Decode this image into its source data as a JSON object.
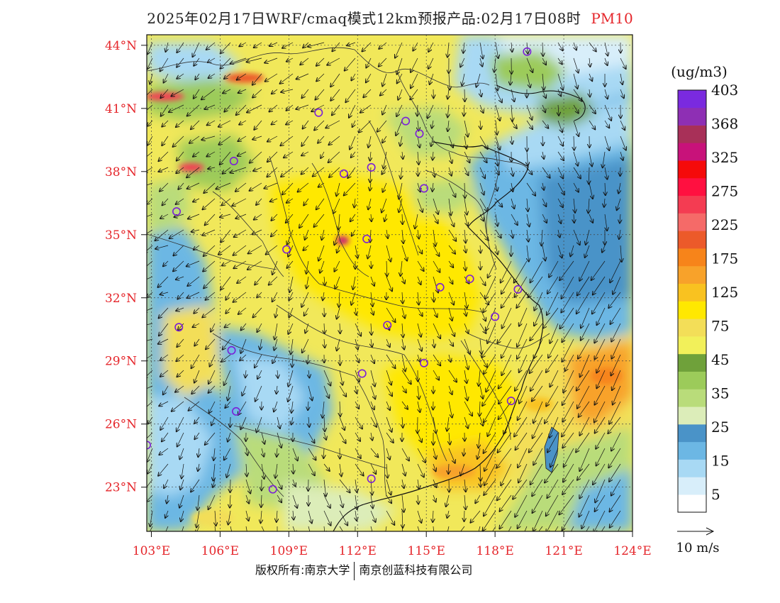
{
  "title": {
    "main": "2025年02月17日WRF/cmaq模式12km预报产品:02月17日08时",
    "variable": "PM10"
  },
  "axes": {
    "lat_labels": [
      "44°N",
      "41°N",
      "38°N",
      "35°N",
      "32°N",
      "29°N",
      "26°N",
      "23°N"
    ],
    "lat_values": [
      44,
      41,
      38,
      35,
      32,
      29,
      26,
      23
    ],
    "lon_labels": [
      "103°E",
      "106°E",
      "109°E",
      "112°E",
      "115°E",
      "118°E",
      "121°E",
      "124°E"
    ],
    "lon_values": [
      103,
      106,
      109,
      112,
      115,
      118,
      121,
      124
    ],
    "lat_range": [
      20.9,
      44.5
    ],
    "lon_range": [
      102.8,
      124
    ]
  },
  "legend": {
    "unit": "(ug/m3)",
    "labels": [
      "5",
      "15",
      "25",
      "35",
      "45",
      "75",
      "125",
      "175",
      "225",
      "275",
      "325",
      "368",
      "403"
    ],
    "colors": [
      "#ffffff",
      "#d8eefa",
      "#a8d9f4",
      "#6cb7e4",
      "#4a93c8",
      "#dcedb9",
      "#b9dc7a",
      "#9ccb5a",
      "#6fa13a",
      "#f2f05a",
      "#f3de58",
      "#ffe800",
      "#f9c220",
      "#f8a22a",
      "#f7841a",
      "#ec5a2a",
      "#f56a68",
      "#f43c52",
      "#ff1040",
      "#f50a0a",
      "#c8127a",
      "#a83058",
      "#8e2fb4",
      "#7a2adf"
    ],
    "reference_vector": "10 m/s"
  },
  "stations": [
    {
      "lon": 119.4,
      "lat": 43.7
    },
    {
      "lon": 110.3,
      "lat": 40.8
    },
    {
      "lon": 114.1,
      "lat": 40.4
    },
    {
      "lon": 114.7,
      "lat": 39.8
    },
    {
      "lon": 106.6,
      "lat": 38.5
    },
    {
      "lon": 111.4,
      "lat": 37.9
    },
    {
      "lon": 112.6,
      "lat": 38.2
    },
    {
      "lon": 114.9,
      "lat": 37.2
    },
    {
      "lon": 104.1,
      "lat": 36.1
    },
    {
      "lon": 108.9,
      "lat": 34.3
    },
    {
      "lon": 112.4,
      "lat": 34.8
    },
    {
      "lon": 115.6,
      "lat": 32.5
    },
    {
      "lon": 116.9,
      "lat": 32.9
    },
    {
      "lon": 119.0,
      "lat": 32.4
    },
    {
      "lon": 118.0,
      "lat": 31.1
    },
    {
      "lon": 104.2,
      "lat": 30.6
    },
    {
      "lon": 113.3,
      "lat": 30.7
    },
    {
      "lon": 106.5,
      "lat": 29.5
    },
    {
      "lon": 114.9,
      "lat": 28.9
    },
    {
      "lon": 112.2,
      "lat": 28.4
    },
    {
      "lon": 118.7,
      "lat": 27.1
    },
    {
      "lon": 106.7,
      "lat": 26.6
    },
    {
      "lon": 102.8,
      "lat": 25.0
    },
    {
      "lon": 108.3,
      "lat": 22.9
    },
    {
      "lon": 112.6,
      "lat": 23.4
    }
  ],
  "copyright": {
    "left": "版权所有:南京大学",
    "right": "南京创蓝科技有限公司"
  }
}
